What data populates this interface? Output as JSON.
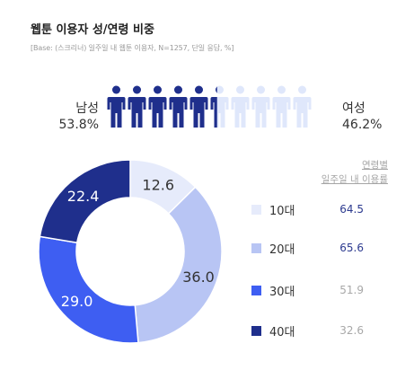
{
  "title": "웹툰 이용자 성/연령 비중",
  "subtitle": "[Base: (스크리너) 일주일 내 웹툰 이용자, N=1257, 단일 응답, %]",
  "gender": {
    "male_label": "남성",
    "male_value": "53.8%",
    "female_label": "여성",
    "female_value": "46.2%",
    "male_share": 53.8,
    "icon_count": 10
  },
  "colors": {
    "10s": "#e6ebfb",
    "20s": "#b8c5f4",
    "30s": "#3e5ef2",
    "40s": "#1f2f8c",
    "person_dark": "#1f2f8c",
    "person_light": "#dfe7fb"
  },
  "rate_header": {
    "line1": "연령별",
    "line2": "일주일 내 이용률"
  },
  "chart_data": {
    "type": "pie",
    "donut": true,
    "categories": [
      "10대",
      "20대",
      "30대",
      "40대"
    ],
    "values": [
      12.6,
      36.0,
      29.0,
      22.4
    ],
    "value_labels": [
      "12.6",
      "36.0",
      "29.0",
      "22.4"
    ],
    "usage_rate": [
      "64.5",
      "65.6",
      "51.9",
      "32.6"
    ],
    "legend_placement": "right"
  }
}
